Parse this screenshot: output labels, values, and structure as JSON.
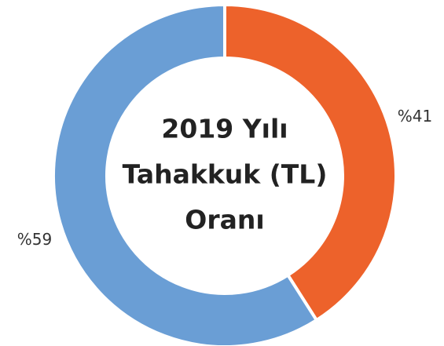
{
  "chart_data": {
    "type": "donut",
    "title": [
      "2019 Yılı",
      "Tahakkuk (TL)",
      "Oranı"
    ],
    "categories": [
      null,
      null
    ],
    "values": [
      41,
      59
    ],
    "value_labels": [
      "%41",
      "%59"
    ],
    "colors": [
      "#ED622B",
      "#6A9ED5"
    ]
  }
}
